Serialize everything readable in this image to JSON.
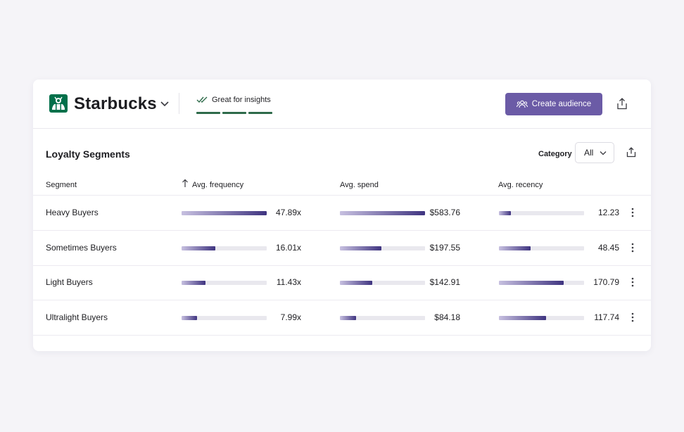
{
  "header": {
    "brand": "Starbucks",
    "insight_label": "Great for insights",
    "create_button_label": "Create audience"
  },
  "section": {
    "title": "Loyalty Segments",
    "category_label": "Category",
    "category_value": "All"
  },
  "table": {
    "columns": {
      "segment": "Segment",
      "frequency": "Avg. frequency",
      "spend": "Avg. spend",
      "recency": "Avg. recency"
    },
    "rows": [
      {
        "segment": "Heavy Buyers",
        "frequency": "47.89x",
        "frequency_fill": 1.0,
        "spend": "$583.76",
        "spend_fill": 1.0,
        "recency": "12.23",
        "recency_fill": 0.14
      },
      {
        "segment": "Sometimes Buyers",
        "frequency": "16.01x",
        "frequency_fill": 0.4,
        "spend": "$197.55",
        "spend_fill": 0.49,
        "recency": "48.45",
        "recency_fill": 0.37
      },
      {
        "segment": "Light Buyers",
        "frequency": "11.43x",
        "frequency_fill": 0.28,
        "spend": "$142.91",
        "spend_fill": 0.38,
        "recency": "170.79",
        "recency_fill": 0.76
      },
      {
        "segment": "Ultralight Buyers",
        "frequency": "7.99x",
        "frequency_fill": 0.18,
        "spend": "$84.18",
        "spend_fill": 0.19,
        "recency": "117.74",
        "recency_fill": 0.55
      }
    ]
  },
  "colors": {
    "accent": "#6b5ba6",
    "bar_start": "#c7c0e0",
    "bar_end": "#3f3480",
    "track": "#e9e8ee",
    "insight_green": "#2e6b4a",
    "logo_green": "#00704a"
  },
  "icons": {
    "logo": "starbucks-siren-logo",
    "brand_menu": "chevron-down-icon",
    "insight": "double-check-icon",
    "create": "users-icon",
    "share": "share-icon",
    "sort": "arrow-up-icon",
    "row_menu": "kebab-menu-icon"
  }
}
